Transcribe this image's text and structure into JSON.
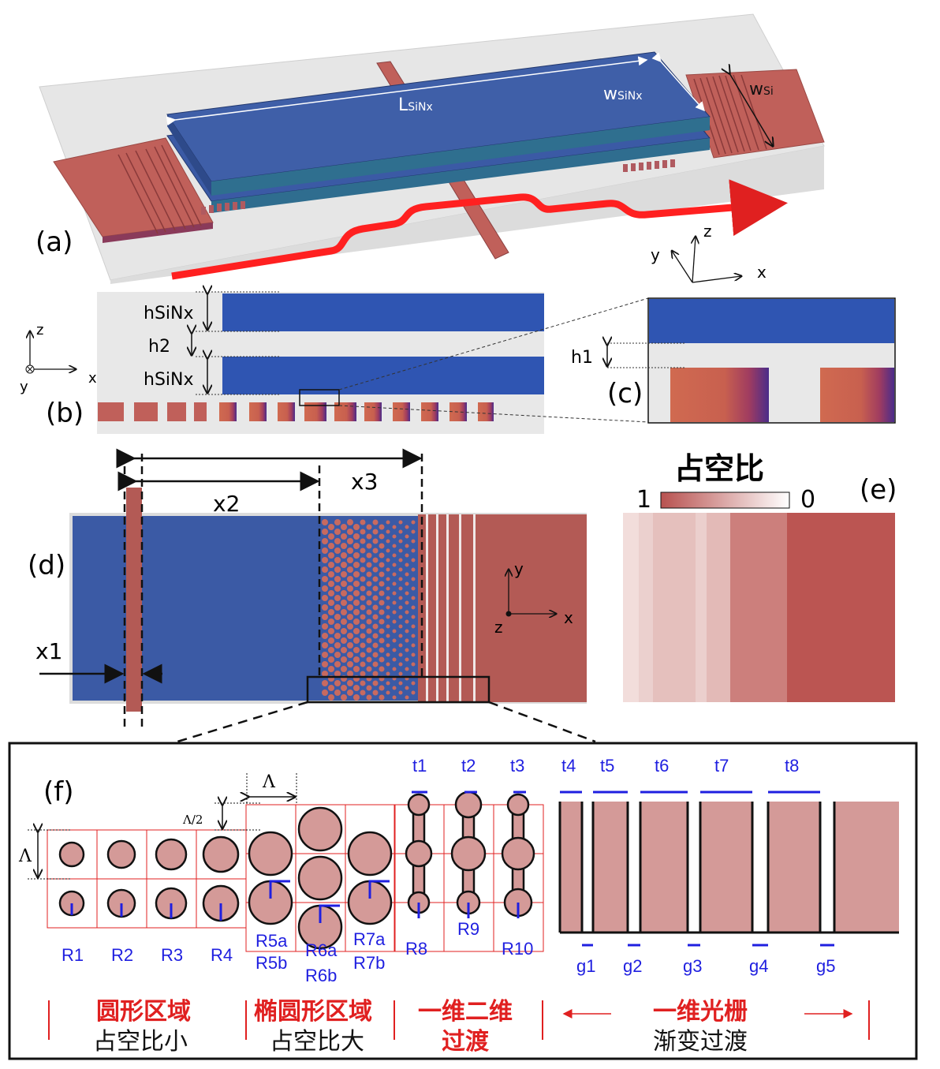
{
  "panel_labels": {
    "a": "(a)",
    "b": "(b)",
    "c": "(c)",
    "d": "(d)",
    "e": "(e)",
    "f": "(f)"
  },
  "panel_a": {
    "l_label": "LSiNx",
    "l_main": "L",
    "l_sub": "SiNx",
    "w_main": "w",
    "w_sub": "SiNx",
    "wsi_main": "w",
    "wsi_sub": "Si",
    "axis_z": "z",
    "axis_y": "y",
    "axis_x": "x"
  },
  "panel_b": {
    "h_sinx_top": "hSiNx",
    "h2": "h2",
    "h_sinx_bottom": "hSiNx",
    "axis_z": "z",
    "axis_y": "y",
    "axis_x": "x"
  },
  "panel_c": {
    "h1": "h1"
  },
  "panel_d": {
    "x1": "x1",
    "x2": "x2",
    "x3": "x3",
    "axis_y": "y",
    "axis_x": "x",
    "axis_z": "z"
  },
  "panel_e": {
    "colorbar_title": "占空比",
    "colorbar_min_label": "1",
    "colorbar_max_label": "0"
  },
  "panel_f": {
    "lambda": "Λ",
    "lambda_half": "Λ/2",
    "lambda_left": "Λ",
    "region_labels": [
      "R1",
      "R2",
      "R3",
      "R4",
      "R5a",
      "R5b",
      "R6a",
      "R6b",
      "R7a",
      "R7b",
      "R8",
      "R9",
      "R10"
    ],
    "t_labels": [
      "t1",
      "t2",
      "t3",
      "t4",
      "t5",
      "t6",
      "t7",
      "t8"
    ],
    "g_labels": [
      "g1",
      "g2",
      "g3",
      "g4",
      "g5"
    ],
    "section1_title": "圆形区域",
    "section1_sub": "占空比小",
    "section2_title": "椭圆形区域",
    "section2_sub": "占空比大",
    "section3_title_1": "一维二维",
    "section3_title_2": "过渡",
    "section4_title": "一维光栅",
    "section4_sub": "渐变过渡"
  },
  "colors": {
    "sinx_blue": "#3b5aa5",
    "si_red": "#c0605a",
    "panel_gray": "#e8e8e8",
    "label_blue": "#1f1fe0",
    "label_red": "#e02020"
  }
}
